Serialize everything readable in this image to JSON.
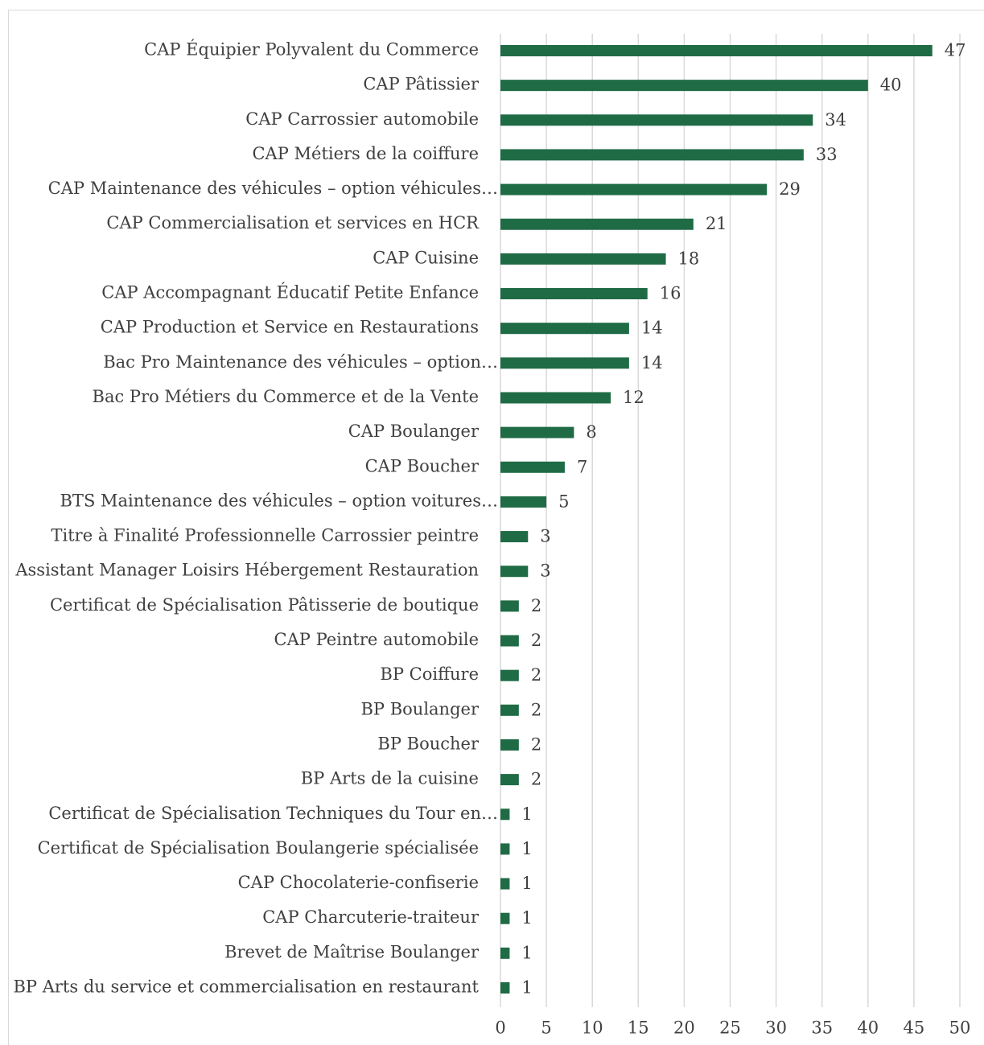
{
  "chart_data": {
    "type": "barh",
    "categories": [
      "CAP Équipier Polyvalent du Commerce",
      "CAP Pâtissier",
      "CAP Carrossier automobile",
      "CAP Métiers de la coiffure",
      "CAP Maintenance des véhicules – option véhicules…",
      "CAP Commercialisation et services en HCR",
      "CAP Cuisine",
      "CAP Accompagnant Éducatif Petite Enfance",
      "CAP Production et Service en Restaurations",
      "Bac Pro Maintenance des véhicules – option…",
      "Bac Pro Métiers du Commerce et de la Vente",
      "CAP Boulanger",
      "CAP Boucher",
      "BTS Maintenance des véhicules – option voitures…",
      "Titre à Finalité Professionnelle Carrossier peintre",
      "Assistant Manager Loisirs Hébergement Restauration",
      "Certificat de Spécialisation Pâtisserie de boutique",
      "CAP Peintre automobile",
      "BP Coiffure",
      "BP Boulanger",
      "BP Boucher",
      "BP Arts de la cuisine",
      "Certificat de Spécialisation  Techniques du Tour en…",
      "Certificat de Spécialisation Boulangerie spécialisée",
      "CAP Chocolaterie-confiserie",
      "CAP Charcuterie-traiteur",
      "Brevet de Maîtrise Boulanger",
      "BP Arts du service et commercialisation en restaurant"
    ],
    "values": [
      47,
      40,
      34,
      33,
      29,
      21,
      18,
      16,
      14,
      14,
      12,
      8,
      7,
      5,
      3,
      3,
      2,
      2,
      2,
      2,
      2,
      2,
      1,
      1,
      1,
      1,
      1,
      1
    ],
    "color": "#1f6b45",
    "xlim": [
      0,
      50
    ],
    "xticks": [
      0,
      5,
      10,
      15,
      20,
      25,
      30,
      35,
      40,
      45,
      50
    ],
    "grid": true
  }
}
